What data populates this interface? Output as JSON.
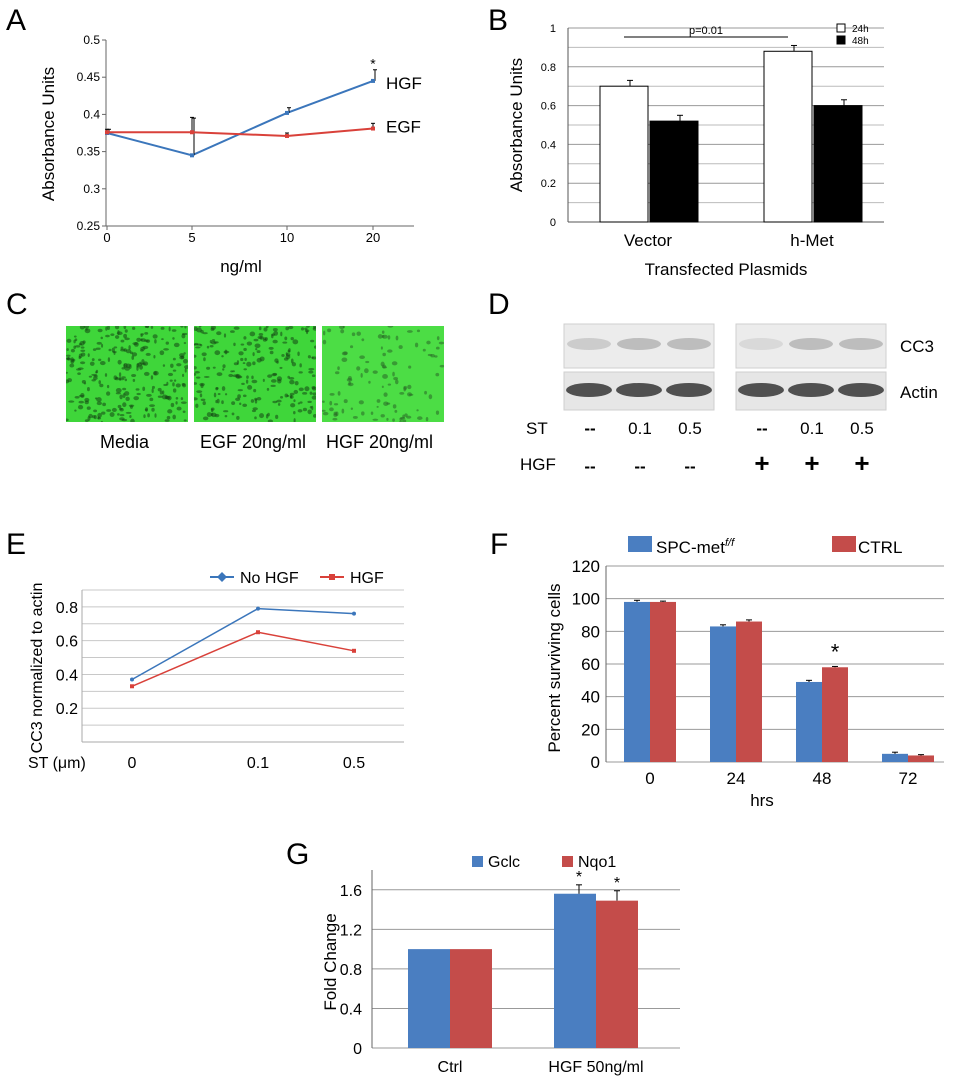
{
  "panels": {
    "A": {
      "letter": "A"
    },
    "B": {
      "letter": "B"
    },
    "C": {
      "letter": "C"
    },
    "D": {
      "letter": "D"
    },
    "E": {
      "letter": "E"
    },
    "F": {
      "letter": "F"
    },
    "G": {
      "letter": "G"
    }
  },
  "chart_A": {
    "type": "line",
    "x": [
      0,
      5,
      10,
      20
    ],
    "x_tick_labels": [
      "0",
      "5",
      "10",
      "20"
    ],
    "ylim": [
      0.25,
      0.5
    ],
    "y_ticks": [
      "0.25",
      "0.3",
      "0.35",
      "0.4",
      "0.45",
      "0.5"
    ],
    "xlabel": "ng/ml",
    "ylabel": "Absorbance Units",
    "series": [
      {
        "name": "HGF",
        "color": "#3b76bb",
        "values": [
          0.375,
          0.345,
          0.402,
          0.445
        ],
        "errors": [
          0.005,
          0.05,
          0.007,
          0.015
        ]
      },
      {
        "name": "EGF",
        "color": "#d9413a",
        "values": [
          0.376,
          0.376,
          0.371,
          0.381
        ],
        "errors": [
          0.004,
          0.02,
          0.004,
          0.007
        ]
      }
    ],
    "annotation": "*"
  },
  "chart_B": {
    "type": "bar",
    "categories": [
      "Vector",
      "h-Met"
    ],
    "ylim": [
      0,
      1
    ],
    "y_ticks": [
      "0",
      "0.2",
      "0.4",
      "0.6",
      "0.8",
      "1"
    ],
    "xlabel": "Transfected Plasmids",
    "ylabel": "Absorbance Units",
    "series": [
      {
        "name": "24h",
        "color": "#ffffff",
        "values": [
          0.7,
          0.88
        ],
        "errors": [
          0.03,
          0.03
        ]
      },
      {
        "name": "48h",
        "color": "#000000",
        "values": [
          0.52,
          0.6
        ],
        "errors": [
          0.03,
          0.03
        ]
      }
    ],
    "annotation": "p=0.01"
  },
  "panel_C": {
    "captions": [
      "Media",
      "EGF 20ng/ml",
      "HGF 20ng/ml"
    ]
  },
  "panel_D": {
    "bands": [
      "CC3",
      "Actin"
    ],
    "row_labels": [
      "ST",
      "HGF"
    ],
    "st_values": [
      "--",
      "0.1",
      "0.5",
      "--",
      "0.1",
      "0.5"
    ],
    "hgf_values": [
      "--",
      "--",
      "--",
      "+",
      "+",
      "+"
    ]
  },
  "chart_E": {
    "type": "line",
    "categories": [
      "0",
      "0.1",
      "0.5"
    ],
    "ylim": [
      0,
      0.9
    ],
    "y_ticks": [
      "0.2",
      "0.4",
      "0.6",
      "0.8"
    ],
    "xlabel": "ST (μm)",
    "ylabel": "CC3 normalized to actin",
    "series": [
      {
        "name": "No HGF",
        "color": "#3b76bb",
        "values": [
          0.37,
          0.79,
          0.76
        ]
      },
      {
        "name": "HGF",
        "color": "#d9413a",
        "values": [
          0.33,
          0.65,
          0.54
        ]
      }
    ]
  },
  "chart_F": {
    "type": "bar",
    "categories": [
      "0",
      "24",
      "48",
      "72"
    ],
    "ylim": [
      0,
      120
    ],
    "y_ticks": [
      "0",
      "20",
      "40",
      "60",
      "80",
      "100",
      "120"
    ],
    "xlabel": "hrs",
    "ylabel": "Percent surviving cells",
    "series": [
      {
        "name": "SPC-met",
        "name_sup": "f/f",
        "color": "#4a7ec1",
        "values": [
          98,
          83,
          49,
          5
        ],
        "errors": [
          1,
          1,
          1,
          1
        ]
      },
      {
        "name": "CTRL",
        "color": "#c44c4a",
        "values": [
          98,
          86,
          58,
          4
        ],
        "errors": [
          0.5,
          1,
          0.5,
          0.5
        ]
      }
    ],
    "annotation": "*"
  },
  "chart_G": {
    "type": "bar",
    "categories": [
      "Ctrl",
      "HGF 50ng/ml"
    ],
    "ylim": [
      0,
      1.8
    ],
    "y_ticks": [
      "0",
      "0.4",
      "0.8",
      "1.2",
      "1.6"
    ],
    "ylabel": "Fold Change",
    "series": [
      {
        "name": "Gclc",
        "color": "#4a7ec1",
        "values": [
          1.0,
          1.56
        ],
        "errors": [
          0,
          0.09
        ]
      },
      {
        "name": "Nqo1",
        "color": "#c44c4a",
        "values": [
          1.0,
          1.49
        ],
        "errors": [
          0,
          0.1
        ]
      }
    ],
    "annotation": "*"
  }
}
